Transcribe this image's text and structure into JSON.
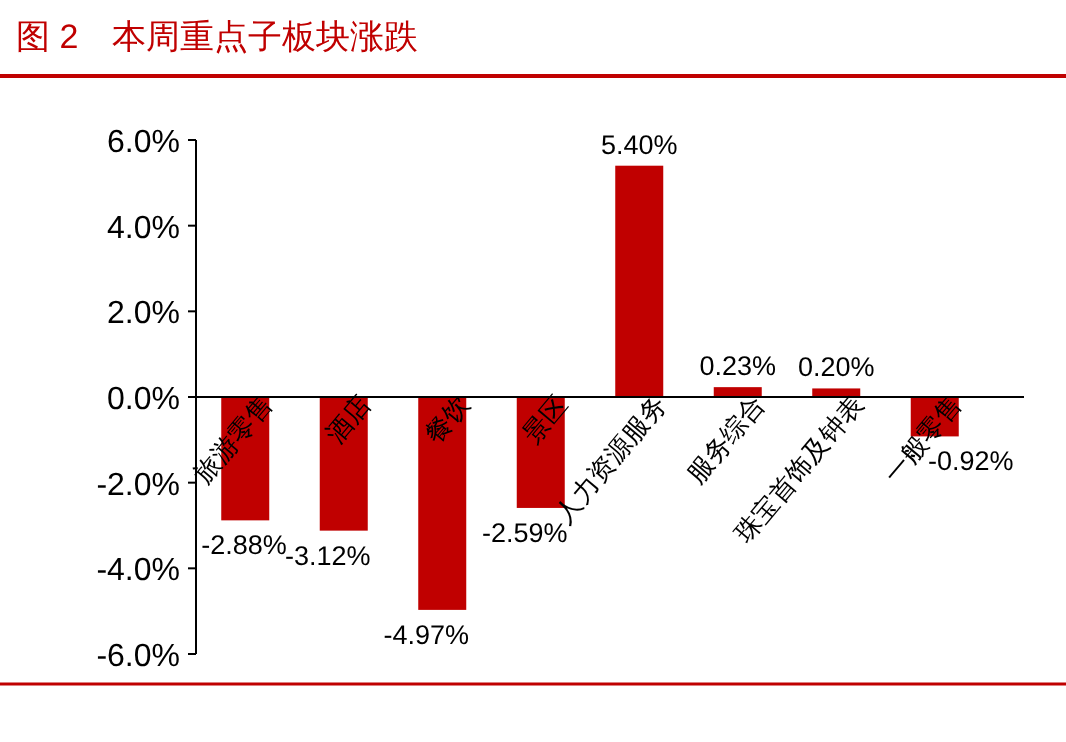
{
  "chart_data": {
    "type": "bar",
    "title": "图 2　本周重点子板块涨跌",
    "categories": [
      "旅游零售",
      "酒店",
      "餐饮",
      "景区",
      "人力资源服务",
      "服务综合",
      "珠宝首饰及钟表",
      "一般零售"
    ],
    "values": [
      -2.88,
      -3.12,
      -4.97,
      -2.59,
      5.4,
      0.23,
      0.2,
      -0.92
    ],
    "value_labels": [
      "-2.88%",
      "-3.12%",
      "-4.97%",
      "-2.59%",
      "5.40%",
      "0.23%",
      "0.20%",
      "-0.92%"
    ],
    "color": "#c00000",
    "ylim": [
      -6,
      6
    ],
    "yticks": [
      {
        "value": -6,
        "label": "-6.0%"
      },
      {
        "value": -4,
        "label": "-4.0%"
      },
      {
        "value": -2,
        "label": "-2.0%"
      },
      {
        "value": 0,
        "label": "0.0%"
      },
      {
        "value": 2,
        "label": "2.0%"
      },
      {
        "value": 4,
        "label": "4.0%"
      },
      {
        "value": 6,
        "label": "6.0%"
      }
    ],
    "grid": false
  }
}
